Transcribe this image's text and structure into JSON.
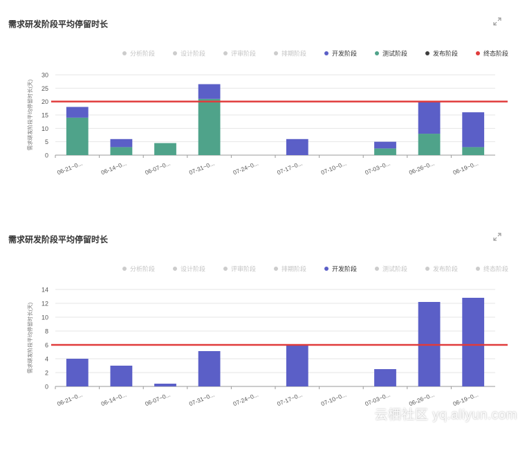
{
  "charts": [
    {
      "title": "需求研发阶段平均停留时长",
      "chart_data": {
        "type": "bar",
        "stacked": true,
        "categories": [
          "06-21~0...",
          "06-14~0...",
          "06-07~0...",
          "07-31~0...",
          "07-24~0...",
          "07-17~0...",
          "07-10~0...",
          "07-03~0...",
          "06-26~0...",
          "06-19~0..."
        ],
        "ylabel": "需求研发阶段平均停留时长(天)",
        "ylim": [
          0,
          30
        ],
        "yticks": [
          0,
          5,
          10,
          15,
          20,
          25,
          30
        ],
        "legend_position": "top-center",
        "legend": [
          {
            "name": "分析阶段",
            "color": "#cccccc",
            "active": false
          },
          {
            "name": "设计阶段",
            "color": "#cccccc",
            "active": false
          },
          {
            "name": "评审阶段",
            "color": "#cccccc",
            "active": false
          },
          {
            "name": "排期阶段",
            "color": "#cccccc",
            "active": false
          },
          {
            "name": "开发阶段",
            "color": "#5b5fc7",
            "active": true
          },
          {
            "name": "测试阶段",
            "color": "#4fa38a",
            "active": true
          },
          {
            "name": "发布阶段",
            "color": "#3d3d3d",
            "active": true
          },
          {
            "name": "终态阶段",
            "color": "#e03b3b",
            "active": true
          }
        ],
        "series": [
          {
            "name": "测试阶段",
            "color": "#4fa38a",
            "values": [
              14,
              3,
              4.5,
              21,
              0,
              0,
              0,
              2.5,
              8,
              3
            ]
          },
          {
            "name": "开发阶段",
            "color": "#5b5fc7",
            "values": [
              4,
              3,
              0,
              5.5,
              0,
              6,
              0,
              2.5,
              12,
              13
            ]
          }
        ],
        "reference_line": {
          "value": 20,
          "color": "#e03b3b"
        }
      }
    },
    {
      "title": "需求研发阶段平均停留时长",
      "chart_data": {
        "type": "bar",
        "stacked": false,
        "categories": [
          "06-21~0...",
          "06-14~0...",
          "06-07~0...",
          "07-31~0...",
          "07-24~0...",
          "07-17~0...",
          "07-10~0...",
          "07-03~0...",
          "06-26~0...",
          "06-19~0..."
        ],
        "ylabel": "需求研发阶段平均停留时长(天)",
        "ylim": [
          0,
          14
        ],
        "yticks": [
          0,
          2,
          4,
          6,
          8,
          10,
          12,
          14
        ],
        "legend_position": "top-center",
        "legend": [
          {
            "name": "分析阶段",
            "color": "#cccccc",
            "active": false
          },
          {
            "name": "设计阶段",
            "color": "#cccccc",
            "active": false
          },
          {
            "name": "评审阶段",
            "color": "#cccccc",
            "active": false
          },
          {
            "name": "排期阶段",
            "color": "#cccccc",
            "active": false
          },
          {
            "name": "开发阶段",
            "color": "#5b5fc7",
            "active": true
          },
          {
            "name": "测试阶段",
            "color": "#cccccc",
            "active": false
          },
          {
            "name": "发布阶段",
            "color": "#cccccc",
            "active": false
          },
          {
            "name": "终态阶段",
            "color": "#cccccc",
            "active": false
          }
        ],
        "series": [
          {
            "name": "开发阶段",
            "color": "#5b5fc7",
            "values": [
              4,
              3,
              0.4,
              5.1,
              0,
              6,
              0,
              2.5,
              12.2,
              12.8
            ]
          }
        ],
        "reference_line": {
          "value": 6,
          "color": "#e03b3b"
        }
      }
    }
  ],
  "watermark": "云栖社区 yq.aliyun.com"
}
